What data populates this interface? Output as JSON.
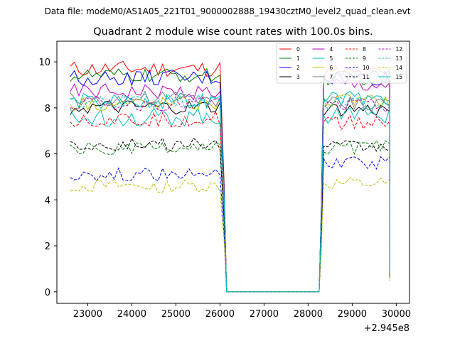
{
  "chart_data": {
    "type": "line",
    "suptitle": "Data file: modeM0/AS1A05_221T01_9000002888_19430cztM0_level2_quad_clean.evt",
    "title": "Quadrant 2 module wise count rates with 100.0s bins.",
    "xlabel": "",
    "ylabel": "",
    "x_offset_label": "+2.945e8",
    "xlim": [
      22300,
      30300
    ],
    "ylim": [
      -0.5,
      10.9
    ],
    "x_ticks": [
      23000,
      24000,
      25000,
      26000,
      27000,
      28000,
      29000,
      30000
    ],
    "y_ticks": [
      0,
      2,
      4,
      6,
      8,
      10
    ],
    "grid": false,
    "legend_position": "upper-right",
    "legend_columns": 4,
    "segments": [
      {
        "start": 22600,
        "end": 26050,
        "step": 100
      },
      {
        "start": 28350,
        "end": 29850,
        "step": 100
      }
    ],
    "gap": {
      "start": 26150,
      "end": 28250,
      "value": 0
    },
    "series": [
      {
        "name": "0",
        "color": "#ff0000",
        "dash": "solid",
        "mean1": 9.7,
        "mean2": 9.5,
        "noise": 0.22
      },
      {
        "name": "1",
        "color": "#008000",
        "dash": "solid",
        "mean1": 9.4,
        "mean2": 9.3,
        "noise": 0.2
      },
      {
        "name": "2",
        "color": "#0000ff",
        "dash": "solid",
        "mean1": 9.3,
        "mean2": 9.3,
        "noise": 0.22
      },
      {
        "name": "3",
        "color": "#000000",
        "dash": "solid",
        "mean1": 8.0,
        "mean2": 7.9,
        "noise": 0.2
      },
      {
        "name": "4",
        "color": "#bf00bf",
        "dash": "solid",
        "mean1": 8.7,
        "mean2": 9.0,
        "noise": 0.22
      },
      {
        "name": "5",
        "color": "#00bfbf",
        "dash": "solid",
        "mean1": 7.6,
        "mean2": 7.7,
        "noise": 0.25
      },
      {
        "name": "6",
        "color": "#bfbf00",
        "dash": "solid",
        "mean1": 8.2,
        "mean2": 8.3,
        "noise": 0.2
      },
      {
        "name": "7",
        "color": "#808080",
        "dash": "solid",
        "mean1": 8.4,
        "mean2": 8.2,
        "noise": 0.22
      },
      {
        "name": "8",
        "color": "#ff0000",
        "dash": "dashed",
        "mean1": 7.5,
        "mean2": 7.4,
        "noise": 0.22
      },
      {
        "name": "9",
        "color": "#008000",
        "dash": "dashed",
        "mean1": 6.2,
        "mean2": 6.3,
        "noise": 0.2
      },
      {
        "name": "10",
        "color": "#0000ff",
        "dash": "dashed",
        "mean1": 5.1,
        "mean2": 5.6,
        "noise": 0.18
      },
      {
        "name": "11",
        "color": "#000000",
        "dash": "dashed",
        "mean1": 6.4,
        "mean2": 6.3,
        "noise": 0.18
      },
      {
        "name": "12",
        "color": "#bf00bf",
        "dash": "dashed",
        "mean1": 8.2,
        "mean2": 8.1,
        "noise": 0.2
      },
      {
        "name": "13",
        "color": "#00bfbf",
        "dash": "dashed",
        "mean1": 8.3,
        "mean2": 8.2,
        "noise": 0.2
      },
      {
        "name": "14",
        "color": "#bfbf00",
        "dash": "dashed",
        "mean1": 4.6,
        "mean2": 4.7,
        "noise": 0.18
      },
      {
        "name": "15",
        "color": "#00bfbf",
        "dash": "solid",
        "mean1": 8.3,
        "mean2": 8.4,
        "noise": 0.22
      }
    ]
  }
}
